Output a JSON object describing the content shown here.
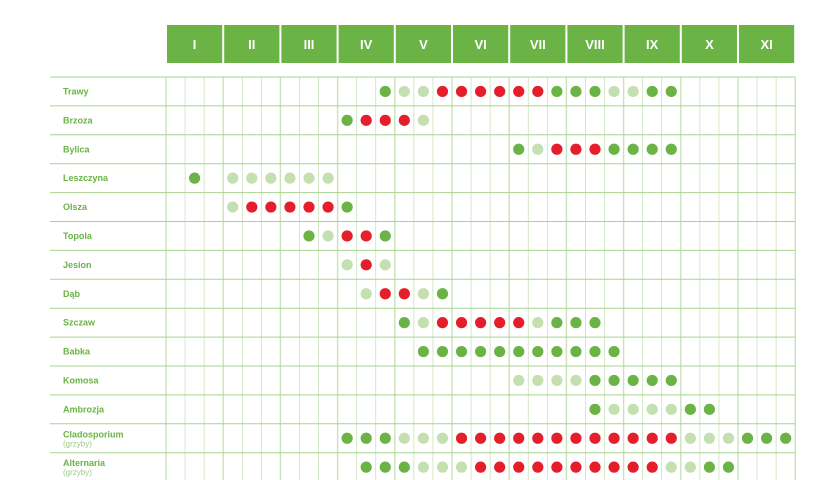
{
  "colors": {
    "header_bg": "#6ab344",
    "header_text": "#ffffff",
    "label_text": "#6ab344",
    "sublabel_text": "#9fcb86",
    "grid_line": "#c9e3b9",
    "row_divider": "#a9d48f",
    "dot_low": "#c4e0b1",
    "dot_medium": "#6ab344",
    "dot_high": "#e41e2b"
  },
  "chart_data": {
    "type": "table",
    "title": "",
    "months": [
      "I",
      "II",
      "III",
      "IV",
      "V",
      "VI",
      "VII",
      "VIII",
      "IX",
      "X",
      "XI"
    ],
    "periods_per_month": 3,
    "value_legend": {
      "0": "none",
      "1": "low",
      "2": "medium",
      "3": "high"
    },
    "rows": [
      {
        "name": "Trawy",
        "sublabel": "",
        "values": [
          0,
          0,
          0,
          0,
          0,
          0,
          0,
          0,
          0,
          0,
          0,
          2,
          1,
          1,
          3,
          3,
          3,
          3,
          3,
          3,
          2,
          2,
          2,
          1,
          1,
          2,
          2,
          0,
          0,
          0,
          0,
          0,
          0
        ]
      },
      {
        "name": "Brzoza",
        "sublabel": "",
        "values": [
          0,
          0,
          0,
          0,
          0,
          0,
          0,
          0,
          0,
          2,
          3,
          3,
          3,
          1,
          0,
          0,
          0,
          0,
          0,
          0,
          0,
          0,
          0,
          0,
          0,
          0,
          0,
          0,
          0,
          0,
          0,
          0,
          0
        ]
      },
      {
        "name": "Bylica",
        "sublabel": "",
        "values": [
          0,
          0,
          0,
          0,
          0,
          0,
          0,
          0,
          0,
          0,
          0,
          0,
          0,
          0,
          0,
          0,
          0,
          0,
          2,
          1,
          3,
          3,
          3,
          2,
          2,
          2,
          2,
          0,
          0,
          0,
          0,
          0,
          0
        ]
      },
      {
        "name": "Leszczyna",
        "sublabel": "",
        "values": [
          0,
          2,
          0,
          1,
          1,
          1,
          1,
          1,
          1,
          0,
          0,
          0,
          0,
          0,
          0,
          0,
          0,
          0,
          0,
          0,
          0,
          0,
          0,
          0,
          0,
          0,
          0,
          0,
          0,
          0,
          0,
          0,
          0
        ]
      },
      {
        "name": "Olsza",
        "sublabel": "",
        "values": [
          0,
          0,
          0,
          1,
          3,
          3,
          3,
          3,
          3,
          2,
          0,
          0,
          0,
          0,
          0,
          0,
          0,
          0,
          0,
          0,
          0,
          0,
          0,
          0,
          0,
          0,
          0,
          0,
          0,
          0,
          0,
          0,
          0
        ]
      },
      {
        "name": "Topola",
        "sublabel": "",
        "values": [
          0,
          0,
          0,
          0,
          0,
          0,
          0,
          2,
          1,
          3,
          3,
          2,
          0,
          0,
          0,
          0,
          0,
          0,
          0,
          0,
          0,
          0,
          0,
          0,
          0,
          0,
          0,
          0,
          0,
          0,
          0,
          0,
          0
        ]
      },
      {
        "name": "Jesion",
        "sublabel": "",
        "values": [
          0,
          0,
          0,
          0,
          0,
          0,
          0,
          0,
          0,
          1,
          3,
          1,
          0,
          0,
          0,
          0,
          0,
          0,
          0,
          0,
          0,
          0,
          0,
          0,
          0,
          0,
          0,
          0,
          0,
          0,
          0,
          0,
          0
        ]
      },
      {
        "name": "Dąb",
        "sublabel": "",
        "values": [
          0,
          0,
          0,
          0,
          0,
          0,
          0,
          0,
          0,
          0,
          1,
          3,
          3,
          1,
          2,
          0,
          0,
          0,
          0,
          0,
          0,
          0,
          0,
          0,
          0,
          0,
          0,
          0,
          0,
          0,
          0,
          0,
          0
        ]
      },
      {
        "name": "Szczaw",
        "sublabel": "",
        "values": [
          0,
          0,
          0,
          0,
          0,
          0,
          0,
          0,
          0,
          0,
          0,
          0,
          2,
          1,
          3,
          3,
          3,
          3,
          3,
          1,
          2,
          2,
          2,
          0,
          0,
          0,
          0,
          0,
          0,
          0,
          0,
          0,
          0
        ]
      },
      {
        "name": "Babka",
        "sublabel": "",
        "values": [
          0,
          0,
          0,
          0,
          0,
          0,
          0,
          0,
          0,
          0,
          0,
          0,
          0,
          2,
          2,
          2,
          2,
          2,
          2,
          2,
          2,
          2,
          2,
          2,
          0,
          0,
          0,
          0,
          0,
          0,
          0,
          0,
          0
        ]
      },
      {
        "name": "Komosa",
        "sublabel": "",
        "values": [
          0,
          0,
          0,
          0,
          0,
          0,
          0,
          0,
          0,
          0,
          0,
          0,
          0,
          0,
          0,
          0,
          0,
          0,
          1,
          1,
          1,
          1,
          2,
          2,
          2,
          2,
          2,
          0,
          0,
          0,
          0,
          0,
          0
        ]
      },
      {
        "name": "Ambrozja",
        "sublabel": "",
        "values": [
          0,
          0,
          0,
          0,
          0,
          0,
          0,
          0,
          0,
          0,
          0,
          0,
          0,
          0,
          0,
          0,
          0,
          0,
          0,
          0,
          0,
          0,
          2,
          1,
          1,
          1,
          1,
          2,
          2,
          0,
          0,
          0,
          0
        ]
      },
      {
        "name": "Cladosporium",
        "sublabel": "(grzyby)",
        "values": [
          0,
          0,
          0,
          0,
          0,
          0,
          0,
          0,
          0,
          2,
          2,
          2,
          1,
          1,
          1,
          3,
          3,
          3,
          3,
          3,
          3,
          3,
          3,
          3,
          3,
          3,
          3,
          1,
          1,
          1,
          2,
          2,
          2
        ]
      },
      {
        "name": "Alternaria",
        "sublabel": "(grzyby)",
        "values": [
          0,
          0,
          0,
          0,
          0,
          0,
          0,
          0,
          0,
          0,
          2,
          2,
          2,
          1,
          1,
          1,
          3,
          3,
          3,
          3,
          3,
          3,
          3,
          3,
          3,
          3,
          1,
          1,
          2,
          2,
          0,
          0,
          0
        ]
      }
    ]
  }
}
